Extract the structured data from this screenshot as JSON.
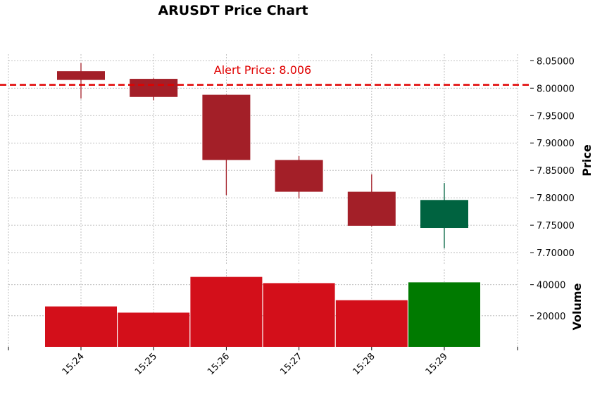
{
  "chart_data": {
    "type": "candlestick",
    "title": "ARUSDT Price Chart",
    "categories": [
      "15:24",
      "15:25",
      "15:26",
      "15:27",
      "15:28",
      "15:29"
    ],
    "ohlc": [
      {
        "time": "15:24",
        "open": 8.031,
        "high": 8.046,
        "low": 7.981,
        "close": 8.015
      },
      {
        "time": "15:25",
        "open": 8.017,
        "high": 8.018,
        "low": 7.978,
        "close": 7.984
      },
      {
        "time": "15:26",
        "open": 7.988,
        "high": 7.988,
        "low": 7.805,
        "close": 7.869
      },
      {
        "time": "15:27",
        "open": 7.869,
        "high": 7.876,
        "low": 7.799,
        "close": 7.811
      },
      {
        "time": "15:28",
        "open": 7.811,
        "high": 7.843,
        "low": 7.748,
        "close": 7.749
      },
      {
        "time": "15:29",
        "open": 7.745,
        "high": 7.827,
        "low": 7.708,
        "close": 7.796
      }
    ],
    "volume": [
      26000,
      22000,
      45000,
      41000,
      30000,
      41500
    ],
    "price_axis": {
      "label": "Price",
      "ticks": [
        "8.05000",
        "8.00000",
        "7.95000",
        "7.90000",
        "7.85000",
        "7.80000",
        "7.75000",
        "7.70000"
      ],
      "ylim": [
        7.677,
        8.062
      ]
    },
    "volume_axis": {
      "label": "Volume",
      "ticks": [
        "40000",
        "20000"
      ],
      "ylim": [
        0,
        48000
      ]
    },
    "alert": {
      "price": 8.006,
      "label": "Alert Price: 8.006",
      "color": "#e00000"
    },
    "colors": {
      "down_candle": "#a31f28",
      "up_candle": "#006340",
      "down_volume": "#d30f1a",
      "up_volume": "#007a00"
    },
    "grid": true
  }
}
